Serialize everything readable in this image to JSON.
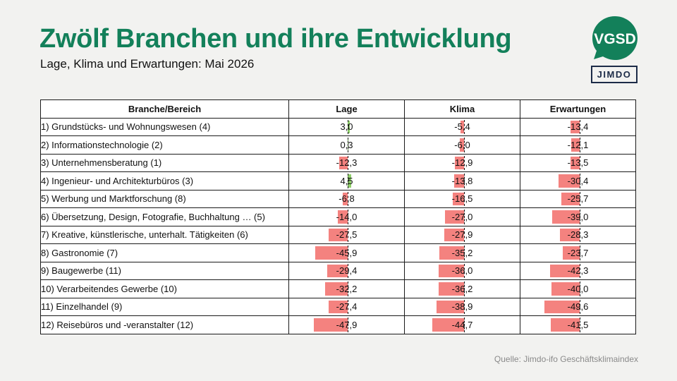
{
  "header": {
    "title": "Zwölf Branchen und ihre Entwicklung",
    "subtitle": "Lage, Klima und Erwartungen: Mai 2026"
  },
  "logos": {
    "vgsd": "VGSD",
    "jimdo": "JIMDO"
  },
  "colors": {
    "title": "#13805a",
    "negative_bar": "#f4827f",
    "positive_bar": "#8fd06a",
    "vgsd_logo": "#13805a",
    "jimdo_logo": "#1c2b47"
  },
  "source": "Quelle: Jimdo-ifo Geschäftsklimaindex",
  "chart_data": {
    "type": "table",
    "columns": [
      "Branche/Bereich",
      "Lage",
      "Klima",
      "Erwartungen"
    ],
    "rows": [
      {
        "name": "1) Grundstücks- und Wohnungswesen (4)",
        "values": [
          3.0,
          -5.4,
          -13.4
        ],
        "labels": [
          "3,0",
          "-5,4",
          "-13,4"
        ]
      },
      {
        "name": "2) Informationstechnologie (2)",
        "values": [
          0.3,
          -6.0,
          -12.1
        ],
        "labels": [
          "0,3",
          "-6,0",
          "-12,1"
        ]
      },
      {
        "name": "3) Unternehmensberatung (1)",
        "values": [
          -12.3,
          -12.9,
          -13.5
        ],
        "labels": [
          "-12,3",
          "-12,9",
          "-13,5"
        ]
      },
      {
        "name": "4) Ingenieur- und Architekturbüros (3)",
        "values": [
          4.5,
          -13.8,
          -30.4
        ],
        "labels": [
          "4,5",
          "-13,8",
          "-30,4"
        ]
      },
      {
        "name": "5) Werbung und Marktforschung (8)",
        "values": [
          -6.8,
          -16.5,
          -25.7
        ],
        "labels": [
          "-6,8",
          "-16,5",
          "-25,7"
        ]
      },
      {
        "name": "6) Übersetzung, Design, Fotografie, Buchhaltung … (5)",
        "values": [
          -14.0,
          -27.0,
          -39.0
        ],
        "labels": [
          "-14,0",
          "-27,0",
          "-39,0"
        ]
      },
      {
        "name": "7) Kreative, künstlerische, unterhalt. Tätigkeiten (6)",
        "values": [
          -27.5,
          -27.9,
          -28.3
        ],
        "labels": [
          "-27,5",
          "-27,9",
          "-28,3"
        ]
      },
      {
        "name": "8) Gastronomie (7)",
        "values": [
          -45.9,
          -35.2,
          -23.7
        ],
        "labels": [
          "-45,9",
          "-35,2",
          "-23,7"
        ]
      },
      {
        "name": "9) Baugewerbe (11)",
        "values": [
          -29.4,
          -36.0,
          -42.3
        ],
        "labels": [
          "-29,4",
          "-36,0",
          "-42,3"
        ]
      },
      {
        "name": "10) Verarbeitendes Gewerbe (10)",
        "values": [
          -32.2,
          -36.2,
          -40.0
        ],
        "labels": [
          "-32,2",
          "-36,2",
          "-40,0"
        ]
      },
      {
        "name": "11) Einzelhandel (9)",
        "values": [
          -27.4,
          -38.9,
          -49.6
        ],
        "labels": [
          "-27,4",
          "-38,9",
          "-49,6"
        ]
      },
      {
        "name": "12) Reisebüros und -veranstalter (12)",
        "values": [
          -47.9,
          -44.7,
          -41.5
        ],
        "labels": [
          "-47,9",
          "-44,7",
          "-41,5"
        ]
      }
    ]
  }
}
